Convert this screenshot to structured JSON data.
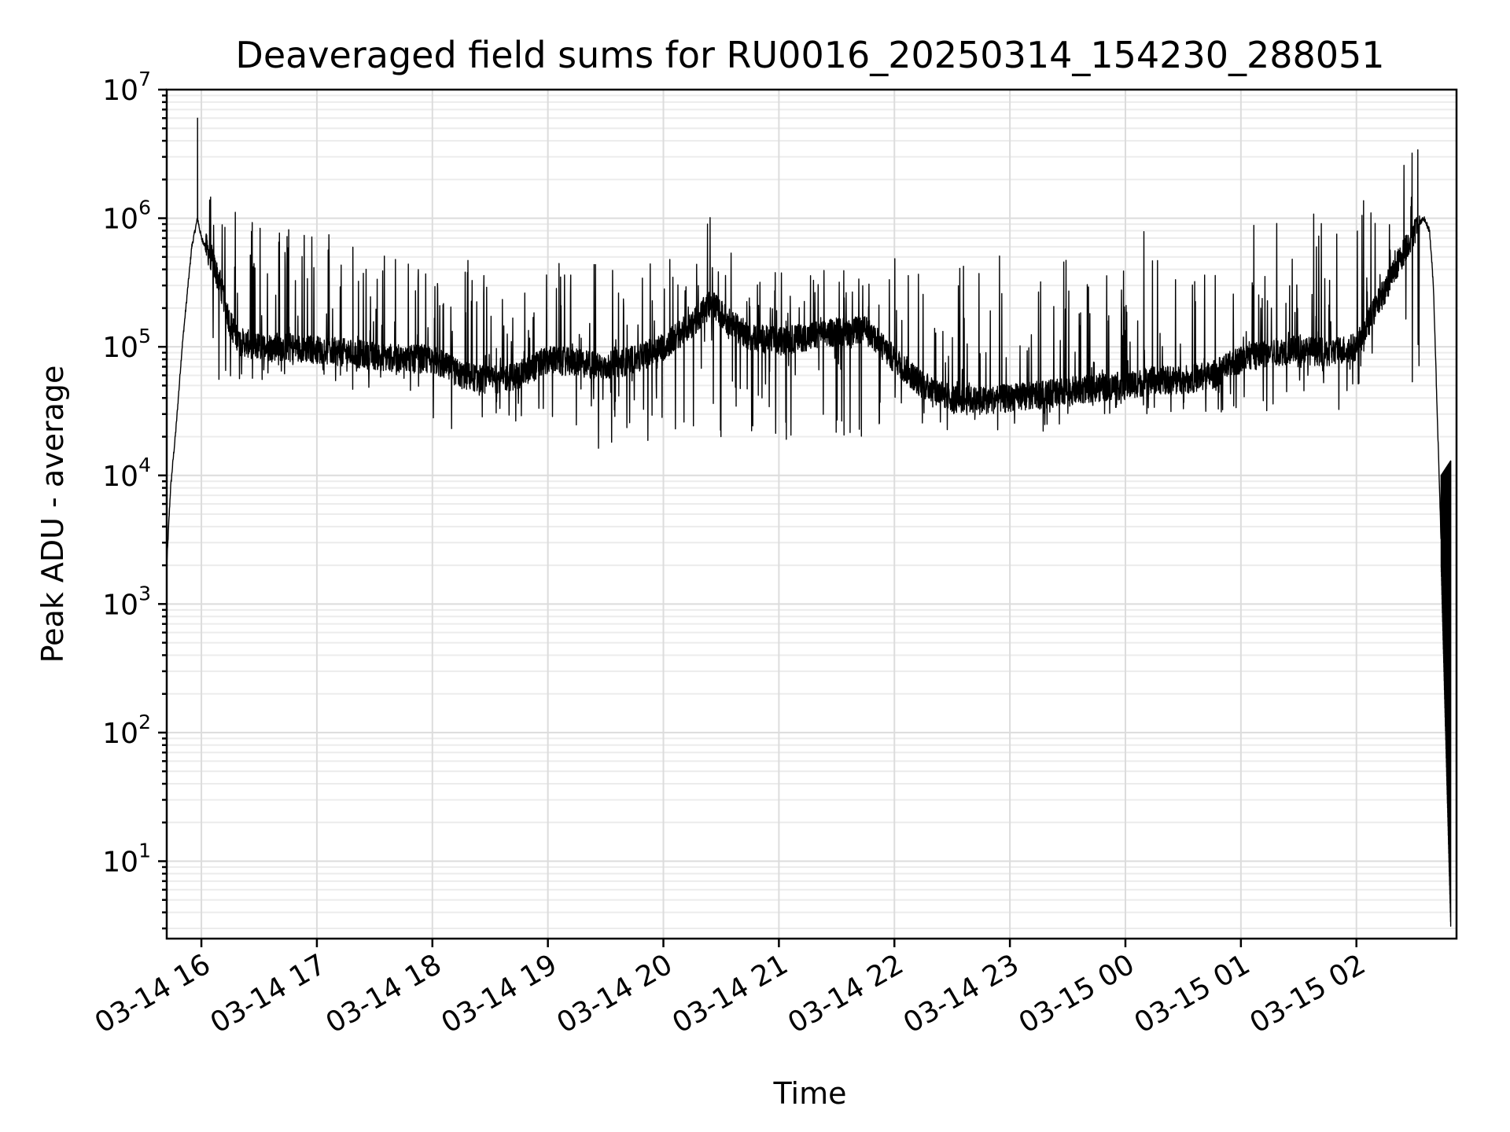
{
  "chart_data": {
    "type": "line",
    "title": "Deaveraged field sums for RU0016_20250314_154230_288051",
    "xlabel": "Time",
    "ylabel": "Peak ADU - average",
    "yscale": "log",
    "ylim": [
      2.5,
      10000000
    ],
    "xlim": [
      "2025-03-14 15:42",
      "2025-03-15 02:52"
    ],
    "grid": "both-major-and-minor",
    "color": "#000000",
    "x_ticks": [
      {
        "t": "2025-03-14 16:00",
        "label": "03-14 16"
      },
      {
        "t": "2025-03-14 17:00",
        "label": "03-14 17"
      },
      {
        "t": "2025-03-14 18:00",
        "label": "03-14 18"
      },
      {
        "t": "2025-03-14 19:00",
        "label": "03-14 19"
      },
      {
        "t": "2025-03-14 20:00",
        "label": "03-14 20"
      },
      {
        "t": "2025-03-14 21:00",
        "label": "03-14 21"
      },
      {
        "t": "2025-03-14 22:00",
        "label": "03-14 22"
      },
      {
        "t": "2025-03-14 23:00",
        "label": "03-14 23"
      },
      {
        "t": "2025-03-15 00:00",
        "label": "03-15 00"
      },
      {
        "t": "2025-03-15 01:00",
        "label": "03-15 01"
      },
      {
        "t": "2025-03-15 02:00",
        "label": "03-15 02"
      }
    ],
    "y_ticks": [
      {
        "v": 10,
        "base": "10",
        "exp": "1"
      },
      {
        "v": 100,
        "base": "10",
        "exp": "2"
      },
      {
        "v": 1000,
        "base": "10",
        "exp": "3"
      },
      {
        "v": 10000,
        "base": "10",
        "exp": "4"
      },
      {
        "v": 100000,
        "base": "10",
        "exp": "5"
      },
      {
        "v": 1000000,
        "base": "10",
        "exp": "6"
      },
      {
        "v": 10000000,
        "base": "10",
        "exp": "7"
      }
    ],
    "series": [
      {
        "baseline": {
          "x": [
            "2025-03-14 15:42",
            "2025-03-14 15:44",
            "2025-03-14 15:47",
            "2025-03-14 15:50",
            "2025-03-14 15:55",
            "2025-03-14 15:58",
            "2025-03-14 16:00",
            "2025-03-14 16:05",
            "2025-03-14 16:10",
            "2025-03-14 16:15",
            "2025-03-14 16:20",
            "2025-03-14 16:30",
            "2025-03-14 16:45",
            "2025-03-14 17:00",
            "2025-03-14 17:15",
            "2025-03-14 17:30",
            "2025-03-14 17:45",
            "2025-03-14 18:00",
            "2025-03-14 18:15",
            "2025-03-14 18:30",
            "2025-03-14 18:45",
            "2025-03-14 19:00",
            "2025-03-14 19:15",
            "2025-03-14 19:30",
            "2025-03-14 19:45",
            "2025-03-14 20:00",
            "2025-03-14 20:15",
            "2025-03-14 20:25",
            "2025-03-14 20:35",
            "2025-03-14 20:45",
            "2025-03-14 21:00",
            "2025-03-14 21:15",
            "2025-03-14 21:30",
            "2025-03-14 21:45",
            "2025-03-14 22:00",
            "2025-03-14 22:15",
            "2025-03-14 22:30",
            "2025-03-14 22:45",
            "2025-03-14 23:00",
            "2025-03-14 23:15",
            "2025-03-14 23:30",
            "2025-03-14 23:45",
            "2025-03-15 00:00",
            "2025-03-15 00:15",
            "2025-03-15 00:30",
            "2025-03-15 00:45",
            "2025-03-15 01:00",
            "2025-03-15 01:15",
            "2025-03-15 01:30",
            "2025-03-15 01:45",
            "2025-03-15 02:00",
            "2025-03-15 02:10",
            "2025-03-15 02:20",
            "2025-03-15 02:30",
            "2025-03-15 02:35",
            "2025-03-15 02:38",
            "2025-03-15 02:40",
            "2025-03-15 02:42",
            "2025-03-15 02:44"
          ],
          "y": [
            2000,
            8000,
            25000,
            100000,
            600000,
            1000000,
            700000,
            500000,
            300000,
            150000,
            110000,
            100000,
            100000,
            95000,
            90000,
            85000,
            80000,
            80000,
            60000,
            55000,
            60000,
            80000,
            75000,
            70000,
            80000,
            100000,
            150000,
            220000,
            150000,
            120000,
            110000,
            120000,
            130000,
            135000,
            80000,
            50000,
            40000,
            38000,
            40000,
            42000,
            45000,
            48000,
            50000,
            55000,
            55000,
            60000,
            80000,
            90000,
            95000,
            90000,
            100000,
            200000,
            400000,
            800000,
            1000000,
            800000,
            300000,
            30000,
            3000
          ]
        },
        "peaks": {
          "x": [
            "2025-03-14 15:58",
            "2025-03-14 16:05",
            "2025-03-14 16:15",
            "2025-03-14 16:25",
            "2025-03-14 16:35",
            "2025-03-14 16:50",
            "2025-03-14 17:00",
            "2025-03-14 17:40",
            "2025-03-14 18:10",
            "2025-03-14 18:30",
            "2025-03-14 19:20",
            "2025-03-14 19:40",
            "2025-03-14 20:15",
            "2025-03-14 20:25",
            "2025-03-14 20:30",
            "2025-03-14 20:45",
            "2025-03-14 21:15",
            "2025-03-14 21:40",
            "2025-03-14 22:30",
            "2025-03-14 23:15",
            "2025-03-14 23:45",
            "2025-03-15 00:30",
            "2025-03-15 01:00",
            "2025-03-15 01:30",
            "2025-03-15 01:45",
            "2025-03-15 02:00",
            "2025-03-15 02:10",
            "2025-03-15 02:35"
          ],
          "y": [
            6000000,
            1500000,
            1200000,
            1000000,
            1100000,
            900000,
            800000,
            600000,
            500000,
            400000,
            500000,
            450000,
            600000,
            1100000,
            1200000,
            500000,
            400000,
            500000,
            500000,
            600000,
            600000,
            800000,
            1300000,
            1500000,
            1300000,
            1400000,
            1200000,
            5000000
          ]
        },
        "dips": {
          "x": [
            "2025-03-14 16:20",
            "2025-03-14 16:45",
            "2025-03-14 17:30",
            "2025-03-14 18:15",
            "2025-03-14 18:30",
            "2025-03-14 18:45",
            "2025-03-14 19:00",
            "2025-03-14 19:30",
            "2025-03-14 20:00",
            "2025-03-14 20:45",
            "2025-03-14 21:00",
            "2025-03-14 22:30",
            "2025-03-14 23:00",
            "2025-03-15 00:00",
            "2025-03-15 00:45"
          ],
          "y": [
            55000,
            60000,
            45000,
            20000,
            17000,
            25000,
            22000,
            15000,
            18000,
            20000,
            19000,
            22000,
            22000,
            30000,
            30000
          ]
        },
        "tail": {
          "x": [
            "2025-03-15 02:44",
            "2025-03-15 02:49"
          ],
          "y_high": [
            10000,
            13000
          ],
          "y_low": [
            2000,
            3
          ]
        }
      }
    ]
  }
}
